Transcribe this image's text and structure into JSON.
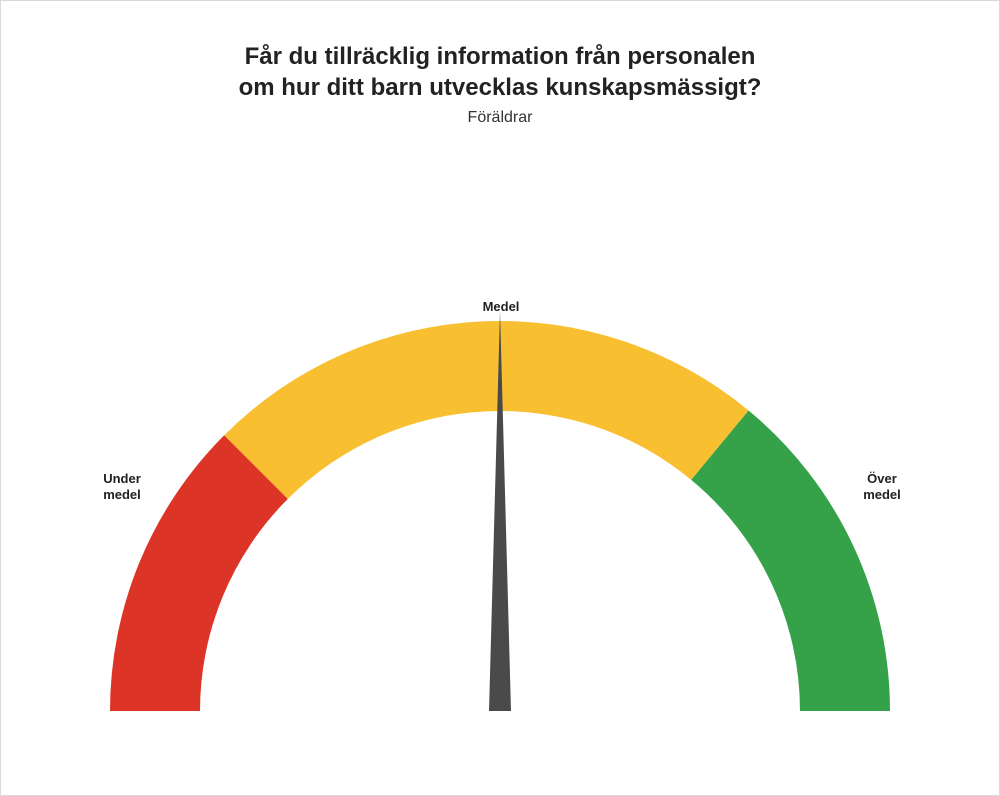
{
  "title_line1": "Får du tillräcklig information från personalen",
  "title_line2": "om hur ditt barn utvecklas kunskapsmässigt?",
  "subtitle": "Föräldrar",
  "gauge": {
    "type": "gauge",
    "range": [
      0,
      100
    ],
    "segments": [
      {
        "from": 0,
        "to": 25,
        "color": "#dd3428"
      },
      {
        "from": 25,
        "to": 72,
        "color": "#f8c030"
      },
      {
        "from": 72,
        "to": 100,
        "color": "#35a149"
      }
    ],
    "outer_radius": 390,
    "inner_radius": 300,
    "needle_value": 50,
    "needle_color": "#4a4a4a",
    "needle_length": 400,
    "needle_base_halfwidth": 11,
    "background_color": "#ffffff",
    "border_color": "#d9d9d9",
    "labels": {
      "left": "Under\nmedel",
      "center": "Medel",
      "right": "Över\nmedel",
      "fontsize": 13,
      "fontweight": "700",
      "color": "#222222"
    },
    "title_fontsize": 24,
    "subtitle_fontsize": 16
  }
}
